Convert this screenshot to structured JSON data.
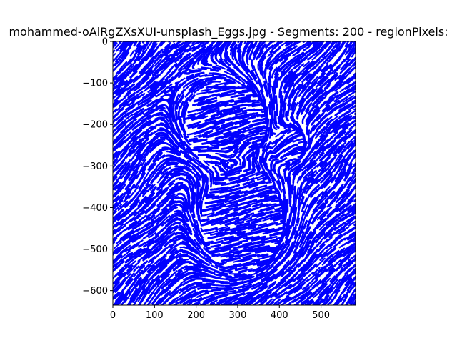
{
  "chart_data": {
    "type": "line",
    "title": "mohammed-oAlRgZXsXUI-unsplash_Eggs.jpg - Segments: 200 - regionPixels:",
    "xlabel": "",
    "ylabel": "",
    "xlim": [
      0,
      583
    ],
    "ylim": [
      -635,
      0
    ],
    "xticks": [
      0,
      100,
      200,
      300,
      400,
      500
    ],
    "yticks": [
      0,
      -100,
      -200,
      -300,
      -400,
      -500,
      -600
    ],
    "xtick_labels": [
      "0",
      "100",
      "200",
      "300",
      "400",
      "500"
    ],
    "ytick_labels": [
      "0",
      "−100",
      "−200",
      "−300",
      "−400",
      "−500",
      "−600"
    ],
    "grid": false,
    "legend": "none",
    "series_color": "#0000ff",
    "description_of_marks": "dense short blue curved streamline strokes tracing egg contours",
    "egg_contours": [
      {
        "cx": 270,
        "cy": -200,
        "rx": 115,
        "ry": 120
      },
      {
        "cx": 420,
        "cy": -250,
        "rx": 45,
        "ry": 50
      },
      {
        "cx": 310,
        "cy": -430,
        "rx": 115,
        "ry": 150
      }
    ]
  }
}
